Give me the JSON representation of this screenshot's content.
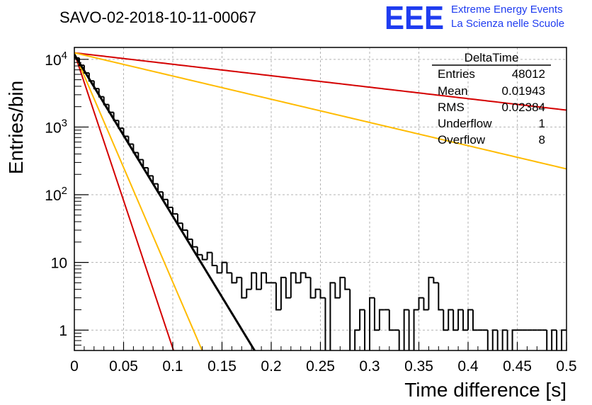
{
  "colors": {
    "histogram": "#000000",
    "fit": "#000000",
    "red": "#d40000",
    "orange": "#ffbb00",
    "logo": "#1f3cf0",
    "grid": "#b3b3b3"
  },
  "chart_data": {
    "type": "histogram",
    "title": "SAVO-02-2018-10-11-00067",
    "xlabel": "Time difference [s]",
    "ylabel": "Entries/bin",
    "xlim": [
      0,
      0.5
    ],
    "ylim": [
      0.5,
      15000
    ],
    "yscale": "log",
    "grid": true,
    "xticks": [
      "0",
      "0.05",
      "0.1",
      "0.15",
      "0.2",
      "0.25",
      "0.3",
      "0.35",
      "0.4",
      "0.45",
      "0.5"
    ],
    "yticks": [
      {
        "value": 1,
        "base": "1",
        "exp": ""
      },
      {
        "value": 10,
        "base": "10",
        "exp": ""
      },
      {
        "value": 100,
        "base": "10",
        "exp": "2"
      },
      {
        "value": 1000,
        "base": "10",
        "exp": "3"
      },
      {
        "value": 10000,
        "base": "10",
        "exp": "4"
      }
    ],
    "bin_width": 0.005,
    "histogram": [
      10500,
      8200,
      6300,
      4800,
      3700,
      2800,
      2150,
      1650,
      1250,
      960,
      730,
      560,
      420,
      330,
      250,
      190,
      145,
      110,
      85,
      65,
      52,
      38,
      30,
      22,
      17,
      13,
      11,
      14,
      9,
      7,
      10,
      7,
      5,
      6,
      3,
      4,
      7,
      4,
      7,
      5,
      5,
      2,
      6,
      3,
      7,
      5,
      7,
      6,
      3,
      4,
      3,
      0,
      5,
      3,
      6,
      4,
      0,
      1,
      2,
      0,
      3,
      1,
      2,
      2,
      1,
      1,
      0,
      2,
      0,
      2,
      3,
      2,
      6,
      5,
      2,
      1,
      2,
      1,
      2,
      1,
      2,
      1,
      1,
      1,
      0,
      1,
      0,
      1,
      0,
      1,
      1,
      1,
      1,
      1,
      1,
      1,
      0,
      1,
      0,
      1
    ],
    "fit_line": {
      "x0": 0,
      "y0": 11800,
      "decay": 55
    },
    "lines": [
      {
        "color": "red",
        "x0": 0,
        "y0": 12500,
        "decay": 3.9
      },
      {
        "color": "orange",
        "x0": 0,
        "y0": 12500,
        "decay": 7.9
      },
      {
        "color": "red",
        "x0": 0,
        "y0": 12500,
        "decay": 100.5
      },
      {
        "color": "orange",
        "x0": 0,
        "y0": 12500,
        "decay": 78
      }
    ],
    "stats": {
      "name": "DeltaTime",
      "rows": [
        {
          "label": "Entries",
          "value": "48012"
        },
        {
          "label": "Mean",
          "value": "0.01943"
        },
        {
          "label": "RMS",
          "value": "0.02384"
        },
        {
          "label": "Underflow",
          "value": "1"
        },
        {
          "label": "Overflow",
          "value": "8"
        }
      ]
    }
  },
  "logo": {
    "mark": "EEE",
    "line1": "Extreme Energy Events",
    "line2": "La Scienza nelle Scuole"
  }
}
